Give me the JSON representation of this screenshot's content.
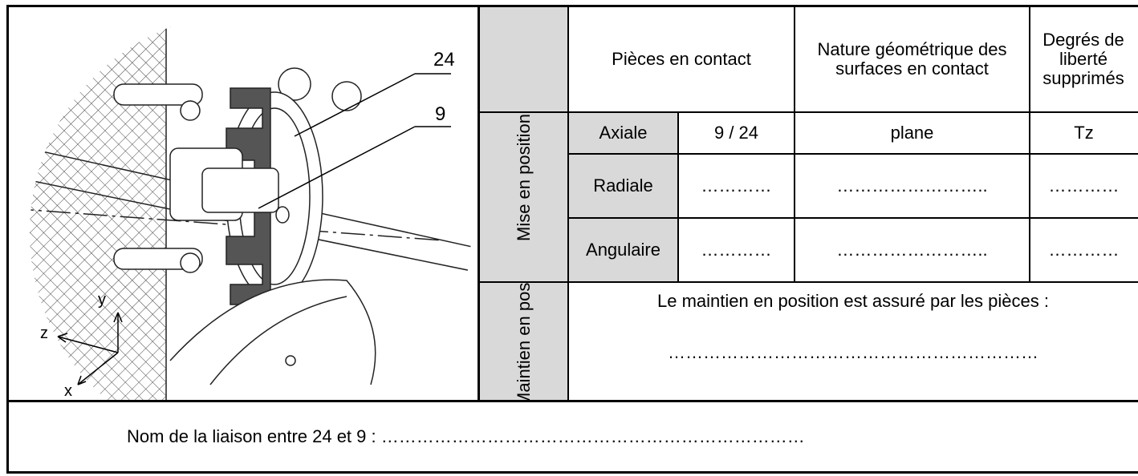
{
  "figure": {
    "labels": [
      "24",
      "9"
    ],
    "axes": [
      "y",
      "z",
      "x"
    ]
  },
  "table": {
    "header": [
      "Pièces en contact",
      "Nature géométrique des surfaces en contact",
      "Degrés de liberté supprimés"
    ],
    "group_labels": [
      "Mise en position",
      "Maintien en position"
    ],
    "rows": [
      [
        "Axiale",
        "9 / 24",
        "plane",
        "Tz"
      ],
      [
        "Radiale",
        "…………",
        "……………………..",
        "…………"
      ],
      [
        "Angulaire",
        "…………",
        "……………………..",
        "…………"
      ]
    ],
    "maintien": {
      "text": "Le maintien en position est assuré par les pièces :",
      "answer": "………………………………………………………"
    }
  },
  "footer": "Nom de la liaison entre 24 et 9 : ………………………………………………………………"
}
